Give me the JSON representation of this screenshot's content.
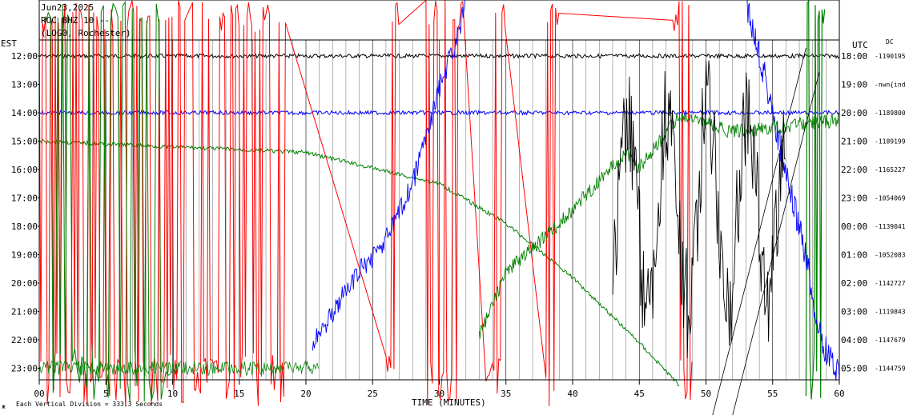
{
  "header": {
    "date": "Jun23,2025",
    "station": "ROC BHZ 10 --",
    "place": "(LOG0, Rochester)"
  },
  "labels": {
    "left_timezone": "EST",
    "right_timezone": "UTC",
    "dc": "DC",
    "xaxis": "TIME (MINUTES)",
    "footer": "Each Vertical Division = 333.3 Seconds"
  },
  "colors": {
    "trace_cycle": [
      "#000000",
      "#ff0000",
      "#0000ff",
      "#008000"
    ],
    "background": "#ffffff",
    "grid": "#000000"
  },
  "chart_data": {
    "type": "line",
    "title": "",
    "xlabel": "TIME (MINUTES)",
    "xlim": [
      0,
      60
    ],
    "x_ticks": [
      "00",
      "5",
      "10",
      "15",
      "20",
      "25",
      "30",
      "35",
      "40",
      "45",
      "50",
      "55",
      "60"
    ],
    "rows_est": [
      "12:00",
      "13:00",
      "14:00",
      "15:00",
      "16:00",
      "17:00",
      "18:00",
      "19:00",
      "20:00",
      "21:00",
      "22:00",
      "23:00"
    ],
    "rows_utc": [
      "18:00",
      "19:00",
      "20:00",
      "21:00",
      "22:00",
      "23:00",
      "00:00",
      "01:00",
      "02:00",
      "03:00",
      "04:00",
      "05:00"
    ],
    "rows_dc": [
      "-1190195",
      "-nwn{ind",
      "-1189800",
      "-1189199",
      "-1165227",
      "-1054069",
      "-1139041",
      "-1052083",
      "-1142727",
      "-1119843",
      "-1147679",
      "-1144759"
    ],
    "grid": "vertical lines every minute, heavier every 5 minutes",
    "series": [
      {
        "row": "12:00",
        "color": "black",
        "x": [
          0,
          10,
          20,
          30,
          40,
          50,
          60
        ],
        "y": [
          0,
          0,
          0,
          0,
          0,
          0,
          0
        ]
      },
      {
        "row": "14:00",
        "color": "blue",
        "x": [
          0,
          10,
          20,
          30,
          40,
          50,
          60
        ],
        "y": [
          0,
          0,
          0,
          0,
          0,
          0,
          0
        ]
      },
      {
        "row": "15:00",
        "color": "green",
        "x": [
          0,
          10,
          20,
          30,
          35,
          40,
          45,
          48
        ],
        "y": [
          0,
          -0.2,
          -0.4,
          -1.5,
          -2.9,
          -4.8,
          -7.1,
          -8.6
        ]
      }
    ]
  }
}
